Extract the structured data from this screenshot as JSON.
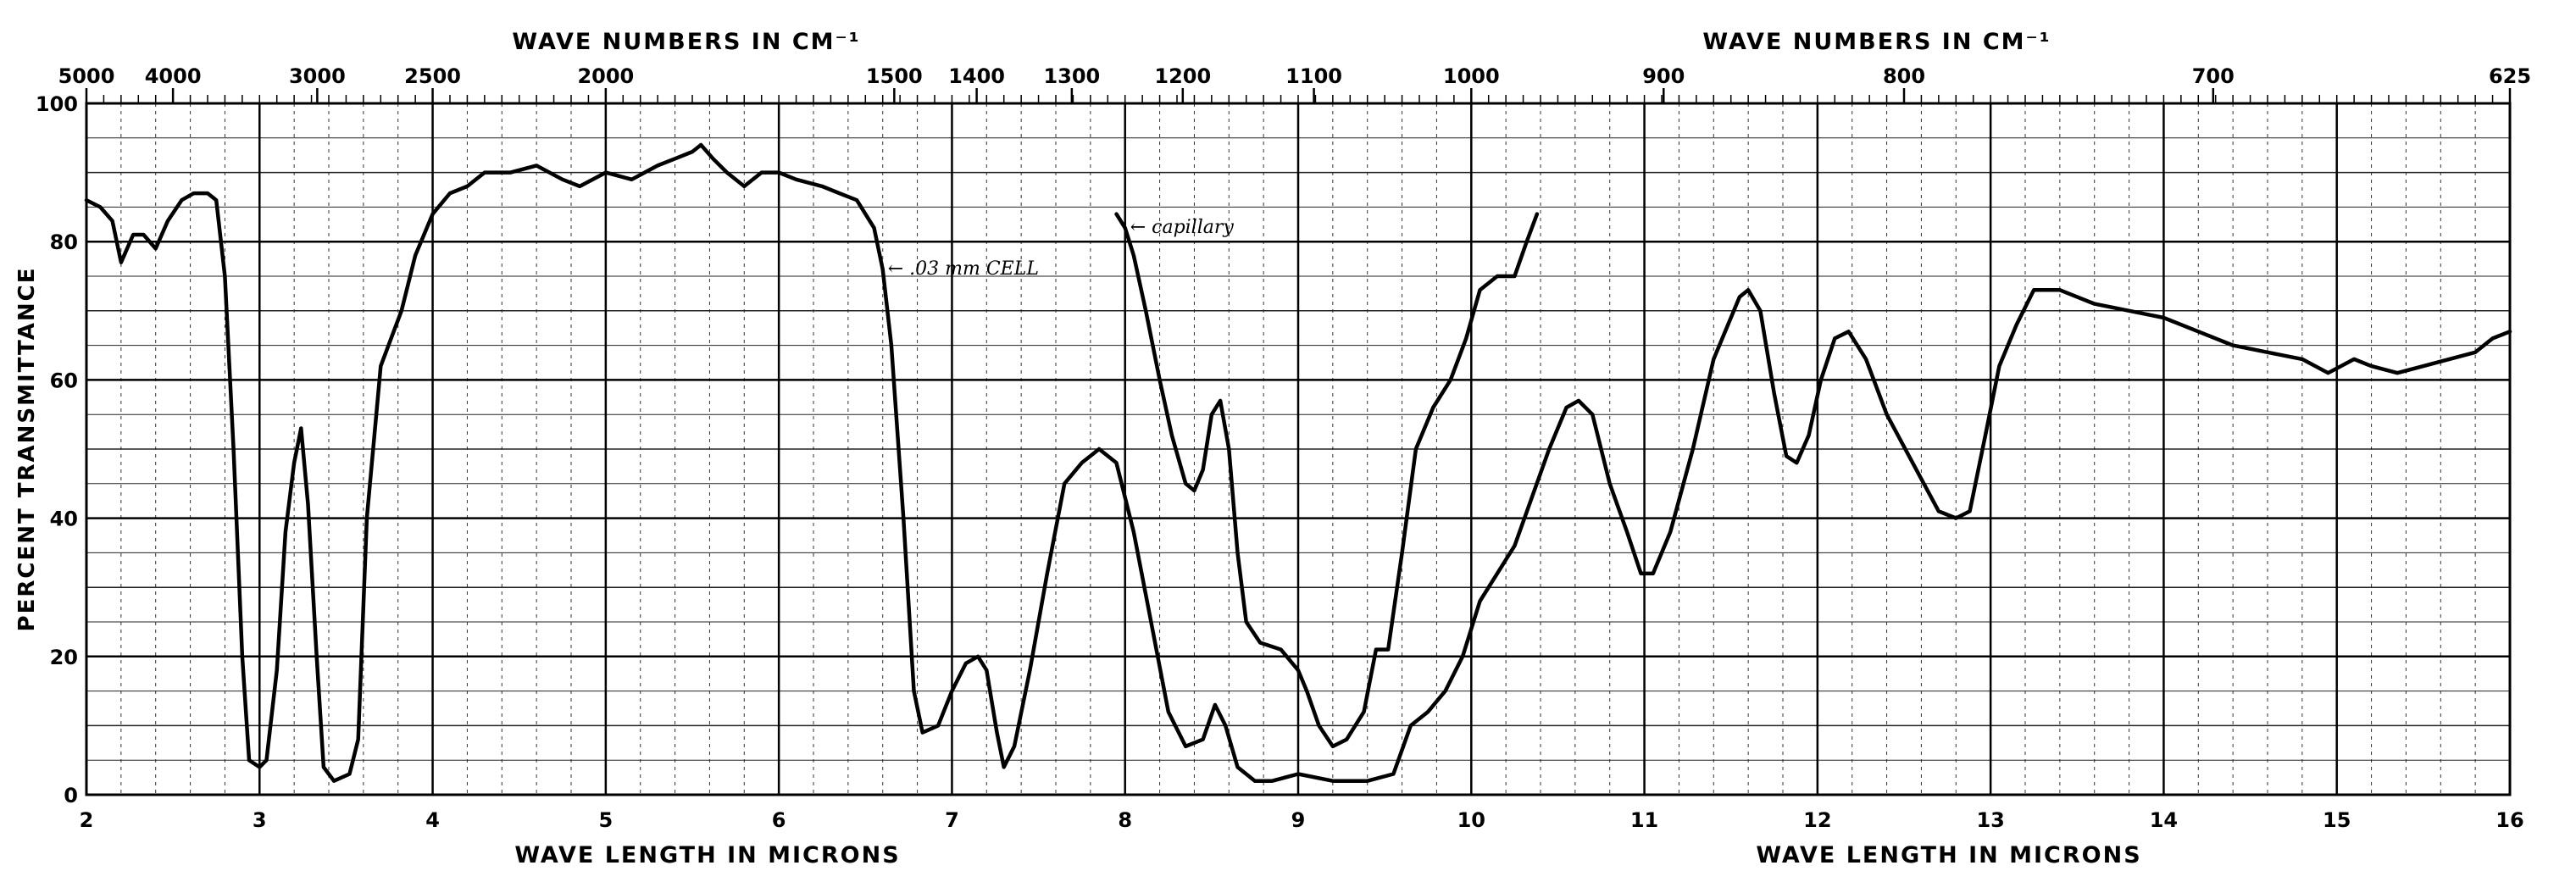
{
  "chart_data": {
    "type": "line",
    "top_axis_labels": [
      "WAVE NUMBERS IN CM⁻¹",
      "WAVE NUMBERS IN CM⁻¹"
    ],
    "bottom_axis_labels": [
      "WAVE LENGTH IN MICRONS",
      "WAVE LENGTH IN MICRONS"
    ],
    "ylabel": "PERCENT TRANSMITTANCE",
    "xlim": [
      2,
      16
    ],
    "ylim": [
      0,
      100
    ],
    "x_ticks": [
      2,
      3,
      4,
      5,
      6,
      7,
      8,
      9,
      10,
      11,
      12,
      13,
      14,
      15,
      16
    ],
    "y_ticks": [
      0,
      20,
      40,
      60,
      80,
      100
    ],
    "wavenumber_ticks": [
      {
        "label": "5000",
        "value": 5000
      },
      {
        "label": "4000",
        "value": 4000
      },
      {
        "label": "3000",
        "value": 3000
      },
      {
        "label": "2500",
        "value": 2500
      },
      {
        "label": "2000",
        "value": 2000
      },
      {
        "label": "1500",
        "value": 1500
      },
      {
        "label": "1400",
        "value": 1400
      },
      {
        "label": "1300",
        "value": 1300
      },
      {
        "label": "1200",
        "value": 1200
      },
      {
        "label": "1100",
        "value": 1100
      },
      {
        "label": "1000",
        "value": 1000
      },
      {
        "label": "900",
        "value": 900
      },
      {
        "label": "800",
        "value": 800
      },
      {
        "label": "700",
        "value": 700
      },
      {
        "label": "625",
        "value": 625
      }
    ],
    "annotations": [
      {
        "text": "← .03 mm CELL",
        "x": 6.6,
        "y": 76
      },
      {
        "text": "← capillary",
        "x": 8.0,
        "y": 82
      }
    ],
    "grid": true,
    "series": [
      {
        "values": [
          [
            2.0,
            86
          ],
          [
            2.08,
            85
          ],
          [
            2.15,
            83
          ],
          [
            2.2,
            77
          ],
          [
            2.27,
            81
          ],
          [
            2.33,
            81
          ],
          [
            2.4,
            79
          ],
          [
            2.47,
            83
          ],
          [
            2.55,
            86
          ],
          [
            2.62,
            87
          ],
          [
            2.7,
            87
          ],
          [
            2.75,
            86
          ],
          [
            2.8,
            75
          ],
          [
            2.85,
            50
          ],
          [
            2.9,
            20
          ],
          [
            2.94,
            5
          ],
          [
            3.0,
            4
          ],
          [
            3.04,
            5
          ],
          [
            3.1,
            18
          ],
          [
            3.15,
            38
          ],
          [
            3.2,
            48
          ],
          [
            3.24,
            53
          ],
          [
            3.28,
            42
          ],
          [
            3.33,
            20
          ],
          [
            3.37,
            4
          ],
          [
            3.43,
            2
          ],
          [
            3.52,
            3
          ],
          [
            3.57,
            8
          ],
          [
            3.62,
            40
          ],
          [
            3.7,
            62
          ],
          [
            3.82,
            70
          ],
          [
            3.9,
            78
          ],
          [
            4.0,
            84
          ],
          [
            4.1,
            87
          ],
          [
            4.2,
            88
          ],
          [
            4.3,
            90
          ],
          [
            4.45,
            90
          ],
          [
            4.6,
            91
          ],
          [
            4.75,
            89
          ],
          [
            4.85,
            88
          ],
          [
            5.0,
            90
          ],
          [
            5.15,
            89
          ],
          [
            5.3,
            91
          ],
          [
            5.4,
            92
          ],
          [
            5.5,
            93
          ],
          [
            5.55,
            94
          ],
          [
            5.62,
            92
          ],
          [
            5.7,
            90
          ],
          [
            5.8,
            88
          ],
          [
            5.9,
            90
          ],
          [
            6.0,
            90
          ],
          [
            6.1,
            89
          ],
          [
            6.25,
            88
          ],
          [
            6.35,
            87
          ],
          [
            6.45,
            86
          ],
          [
            6.55,
            82
          ],
          [
            6.6,
            76
          ],
          [
            6.65,
            65
          ],
          [
            6.72,
            40
          ],
          [
            6.78,
            15
          ],
          [
            6.83,
            9
          ],
          [
            6.92,
            10
          ],
          [
            7.0,
            15
          ],
          [
            7.08,
            19
          ],
          [
            7.15,
            20
          ],
          [
            7.2,
            18
          ],
          [
            7.26,
            9
          ],
          [
            7.3,
            4
          ],
          [
            7.36,
            7
          ],
          [
            7.45,
            18
          ],
          [
            7.55,
            32
          ],
          [
            7.65,
            45
          ],
          [
            7.75,
            48
          ],
          [
            7.85,
            50
          ],
          [
            7.95,
            48
          ],
          [
            8.05,
            38
          ],
          [
            8.15,
            25
          ],
          [
            8.25,
            12
          ],
          [
            8.35,
            7
          ],
          [
            8.45,
            8
          ],
          [
            8.52,
            13
          ],
          [
            8.58,
            10
          ],
          [
            8.65,
            4
          ],
          [
            8.75,
            2
          ],
          [
            8.85,
            2
          ],
          [
            9.0,
            3
          ],
          [
            9.2,
            2
          ],
          [
            9.4,
            2
          ],
          [
            9.55,
            3
          ],
          [
            9.65,
            10
          ],
          [
            9.75,
            12
          ],
          [
            9.85,
            15
          ],
          [
            9.95,
            20
          ],
          [
            10.05,
            28
          ],
          [
            10.15,
            32
          ],
          [
            10.25,
            36
          ],
          [
            10.35,
            43
          ],
          [
            10.45,
            50
          ],
          [
            10.55,
            56
          ],
          [
            10.62,
            57
          ],
          [
            10.7,
            55
          ],
          [
            10.8,
            45
          ],
          [
            10.9,
            38
          ],
          [
            10.98,
            32
          ],
          [
            11.05,
            32
          ],
          [
            11.15,
            38
          ],
          [
            11.28,
            50
          ],
          [
            11.4,
            63
          ],
          [
            11.55,
            72
          ],
          [
            11.6,
            73
          ],
          [
            11.67,
            70
          ],
          [
            11.75,
            58
          ],
          [
            11.82,
            49
          ],
          [
            11.88,
            48
          ],
          [
            11.95,
            52
          ],
          [
            12.02,
            60
          ],
          [
            12.1,
            66
          ],
          [
            12.18,
            67
          ],
          [
            12.28,
            63
          ],
          [
            12.4,
            55
          ],
          [
            12.55,
            48
          ],
          [
            12.7,
            41
          ],
          [
            12.8,
            40
          ],
          [
            12.88,
            41
          ],
          [
            12.97,
            52
          ],
          [
            13.05,
            62
          ],
          [
            13.15,
            68
          ],
          [
            13.25,
            73
          ],
          [
            13.4,
            73
          ],
          [
            13.6,
            71
          ],
          [
            13.8,
            70
          ],
          [
            14.0,
            69
          ],
          [
            14.2,
            67
          ],
          [
            14.4,
            65
          ],
          [
            14.6,
            64
          ],
          [
            14.8,
            63
          ],
          [
            14.95,
            61
          ],
          [
            15.1,
            63
          ],
          [
            15.2,
            62
          ],
          [
            15.35,
            61
          ],
          [
            15.5,
            62
          ],
          [
            15.65,
            63
          ],
          [
            15.8,
            64
          ],
          [
            15.9,
            66
          ],
          [
            16.0,
            67
          ]
        ]
      },
      {
        "values": [
          [
            7.95,
            84
          ],
          [
            8.0,
            82
          ],
          [
            8.05,
            78
          ],
          [
            8.12,
            70
          ],
          [
            8.2,
            60
          ],
          [
            8.27,
            52
          ],
          [
            8.35,
            45
          ],
          [
            8.4,
            44
          ],
          [
            8.45,
            47
          ],
          [
            8.5,
            55
          ],
          [
            8.55,
            57
          ],
          [
            8.6,
            50
          ],
          [
            8.65,
            35
          ],
          [
            8.7,
            25
          ],
          [
            8.78,
            22
          ],
          [
            8.9,
            21
          ],
          [
            9.0,
            18
          ],
          [
            9.05,
            15
          ],
          [
            9.12,
            10
          ],
          [
            9.2,
            7
          ],
          [
            9.28,
            8
          ],
          [
            9.38,
            12
          ],
          [
            9.45,
            21
          ],
          [
            9.52,
            21
          ],
          [
            9.6,
            35
          ],
          [
            9.68,
            50
          ],
          [
            9.78,
            56
          ],
          [
            9.88,
            60
          ],
          [
            9.97,
            66
          ],
          [
            10.05,
            73
          ],
          [
            10.15,
            75
          ],
          [
            10.25,
            75
          ],
          [
            10.32,
            80
          ],
          [
            10.38,
            84
          ]
        ]
      }
    ]
  }
}
